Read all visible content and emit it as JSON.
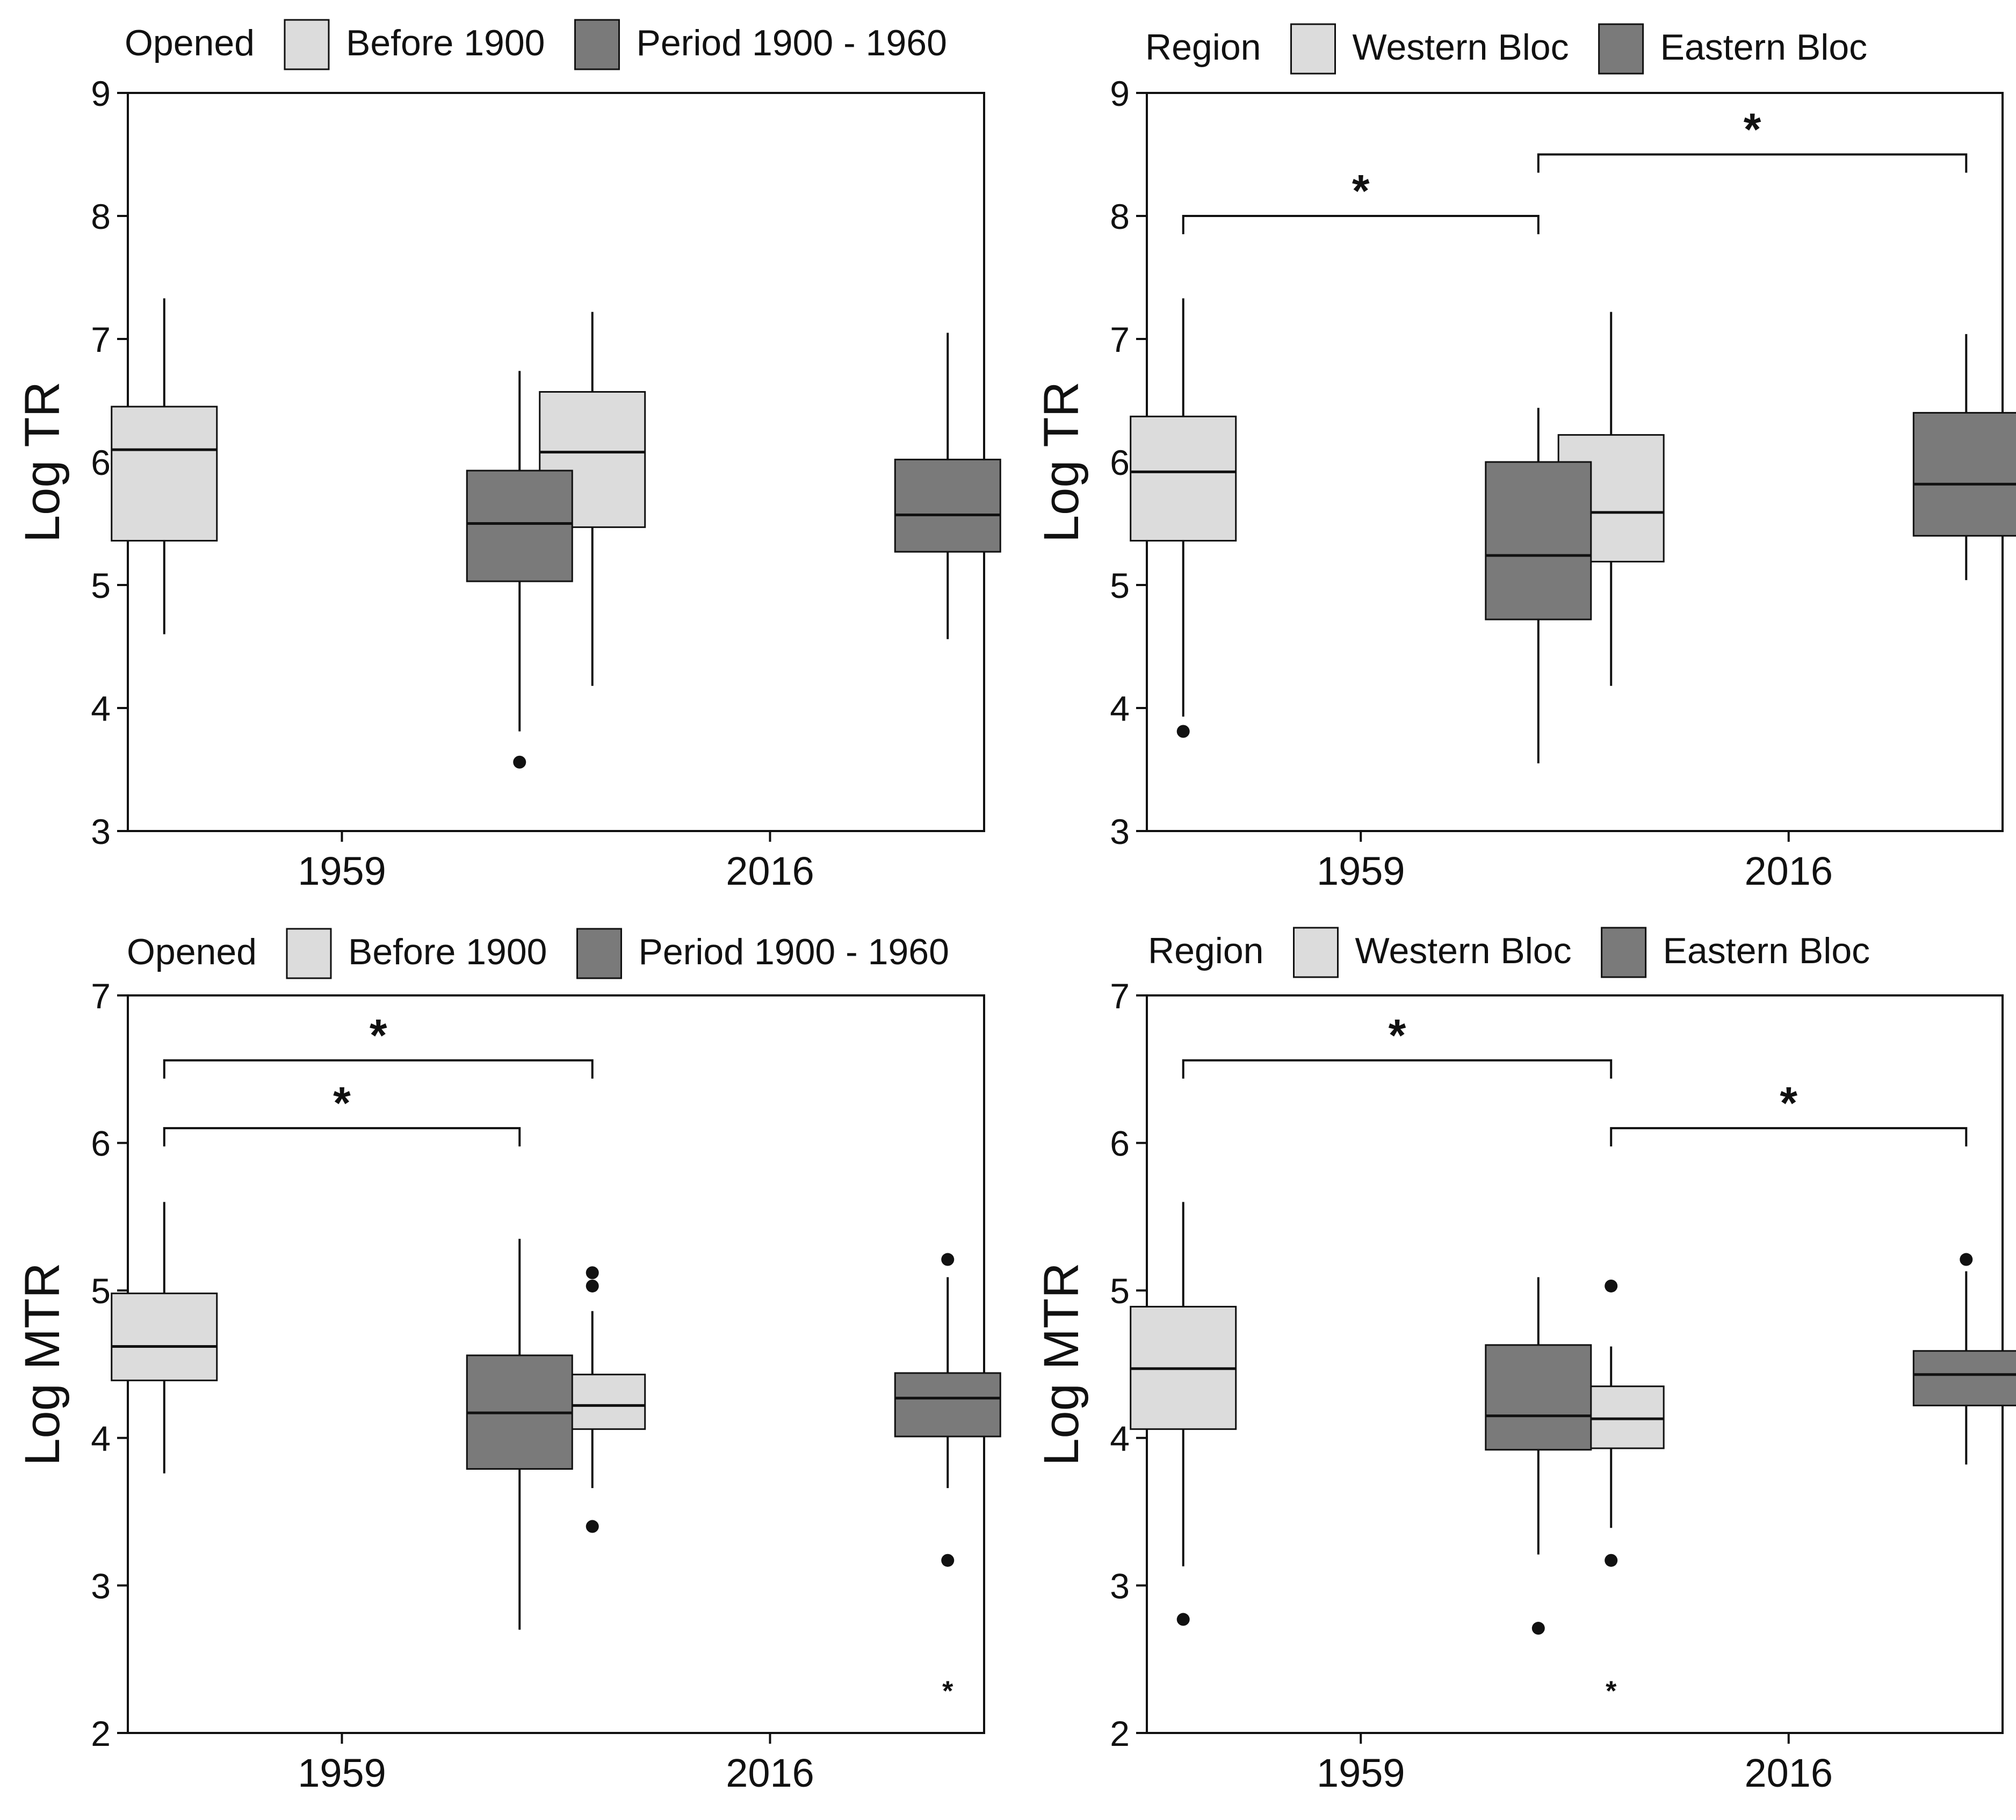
{
  "colors": {
    "before_1900": "#dcdcdc",
    "period_1900_1960": "#7a7a7a",
    "western_bloc": "#dcdcdc",
    "eastern_bloc": "#7a7a7a",
    "ink": "#111111"
  },
  "chart_data": [
    {
      "type": "box",
      "ylabel": "Log TR",
      "ylim": [
        3,
        9
      ],
      "yticks": [
        "3",
        "4",
        "5",
        "6",
        "7",
        "8",
        "9"
      ],
      "categories": [
        "1959",
        "2016"
      ],
      "legend": {
        "title": "Opened",
        "entries": [
          {
            "label": "Before 1900",
            "color": "#dcdcdc"
          },
          {
            "label": "Period 1900 - 1960",
            "color": "#7a7a7a"
          }
        ]
      },
      "series": [
        {
          "name": "Before 1900",
          "color": "#dcdcdc",
          "boxes": [
            {
              "category": "1959",
              "whisker_low": 4.6,
              "q1": 5.36,
              "median": 6.1,
              "q3": 6.45,
              "whisker_high": 7.33,
              "outliers": [],
              "extremes": []
            },
            {
              "category": "2016",
              "whisker_low": 4.18,
              "q1": 5.47,
              "median": 6.08,
              "q3": 6.57,
              "whisker_high": 7.22,
              "outliers": [],
              "extremes": []
            }
          ]
        },
        {
          "name": "Period 1900 - 1960",
          "color": "#7a7a7a",
          "boxes": [
            {
              "category": "1959",
              "whisker_low": 3.81,
              "q1": 5.03,
              "median": 5.5,
              "q3": 5.93,
              "whisker_high": 6.74,
              "outliers": [
                3.56
              ],
              "extremes": []
            },
            {
              "category": "2016",
              "whisker_low": 4.56,
              "q1": 5.27,
              "median": 5.57,
              "q3": 6.02,
              "whisker_high": 7.05,
              "outliers": [],
              "extremes": []
            }
          ]
        }
      ],
      "significance": []
    },
    {
      "type": "box",
      "ylabel": "Log TR",
      "ylim": [
        3,
        9
      ],
      "yticks": [
        "3",
        "4",
        "5",
        "6",
        "7",
        "8",
        "9"
      ],
      "categories": [
        "1959",
        "2016"
      ],
      "legend": {
        "title": "Region",
        "entries": [
          {
            "label": "Western Bloc",
            "color": "#dcdcdc"
          },
          {
            "label": "Eastern Bloc",
            "color": "#7a7a7a"
          }
        ]
      },
      "series": [
        {
          "name": "Western Bloc",
          "color": "#dcdcdc",
          "boxes": [
            {
              "category": "1959",
              "whisker_low": 3.93,
              "q1": 5.36,
              "median": 5.92,
              "q3": 6.37,
              "whisker_high": 7.33,
              "outliers": [
                3.81
              ],
              "extremes": []
            },
            {
              "category": "2016",
              "whisker_low": 4.18,
              "q1": 5.19,
              "median": 5.59,
              "q3": 6.22,
              "whisker_high": 7.22,
              "outliers": [],
              "extremes": []
            }
          ]
        },
        {
          "name": "Eastern Bloc",
          "color": "#7a7a7a",
          "boxes": [
            {
              "category": "1959",
              "whisker_low": 3.55,
              "q1": 4.72,
              "median": 5.24,
              "q3": 6.0,
              "whisker_high": 6.44,
              "outliers": [],
              "extremes": []
            },
            {
              "category": "2016",
              "whisker_low": 5.04,
              "q1": 5.4,
              "median": 5.82,
              "q3": 6.4,
              "whisker_high": 7.04,
              "outliers": [],
              "extremes": []
            }
          ]
        }
      ],
      "significance": [
        {
          "from": "1959:Western Bloc",
          "to": "1959:Eastern Bloc",
          "y": 8.0,
          "label": "*"
        },
        {
          "from": "1959:Eastern Bloc",
          "to": "2016:Eastern Bloc",
          "y": 8.5,
          "label": "*"
        }
      ]
    },
    {
      "type": "box",
      "ylabel": "Log MTR",
      "ylim": [
        2,
        7
      ],
      "yticks": [
        "2",
        "3",
        "4",
        "5",
        "6",
        "7"
      ],
      "categories": [
        "1959",
        "2016"
      ],
      "legend": {
        "title": "Opened",
        "entries": [
          {
            "label": "Before 1900",
            "color": "#dcdcdc"
          },
          {
            "label": "Period 1900 - 1960",
            "color": "#7a7a7a"
          }
        ]
      },
      "series": [
        {
          "name": "Before 1900",
          "color": "#dcdcdc",
          "boxes": [
            {
              "category": "1959",
              "whisker_low": 3.76,
              "q1": 4.39,
              "median": 4.62,
              "q3": 4.98,
              "whisker_high": 5.6,
              "outliers": [],
              "extremes": []
            },
            {
              "category": "2016",
              "whisker_low": 3.66,
              "q1": 4.06,
              "median": 4.22,
              "q3": 4.43,
              "whisker_high": 4.86,
              "outliers": [
                5.12,
                5.03,
                3.4
              ],
              "extremes": []
            }
          ]
        },
        {
          "name": "Period 1900 - 1960",
          "color": "#7a7a7a",
          "boxes": [
            {
              "category": "1959",
              "whisker_low": 2.7,
              "q1": 3.79,
              "median": 4.17,
              "q3": 4.56,
              "whisker_high": 5.35,
              "outliers": [],
              "extremes": []
            },
            {
              "category": "2016",
              "whisker_low": 3.66,
              "q1": 4.01,
              "median": 4.27,
              "q3": 4.44,
              "whisker_high": 5.09,
              "outliers": [
                5.21,
                3.17
              ],
              "extremes": [
                2.3
              ]
            }
          ]
        }
      ],
      "significance": [
        {
          "from": "1959:Before 1900",
          "to": "1959:Period 1900 - 1960",
          "y": 6.1,
          "label": "*"
        },
        {
          "from": "1959:Before 1900",
          "to": "2016:Before 1900",
          "y": 6.56,
          "label": "*"
        }
      ]
    },
    {
      "type": "box",
      "ylabel": "Log MTR",
      "ylim": [
        2,
        7
      ],
      "yticks": [
        "2",
        "3",
        "4",
        "5",
        "6",
        "7"
      ],
      "categories": [
        "1959",
        "2016"
      ],
      "legend": {
        "title": "Region",
        "entries": [
          {
            "label": "Western Bloc",
            "color": "#dcdcdc"
          },
          {
            "label": "Eastern Bloc",
            "color": "#7a7a7a"
          }
        ]
      },
      "series": [
        {
          "name": "Western Bloc",
          "color": "#dcdcdc",
          "boxes": [
            {
              "category": "1959",
              "whisker_low": 3.13,
              "q1": 4.06,
              "median": 4.47,
              "q3": 4.89,
              "whisker_high": 5.6,
              "outliers": [
                2.77
              ],
              "extremes": []
            },
            {
              "category": "2016",
              "whisker_low": 3.39,
              "q1": 3.93,
              "median": 4.13,
              "q3": 4.35,
              "whisker_high": 4.62,
              "outliers": [
                5.03,
                3.17
              ],
              "extremes": [
                2.3
              ]
            }
          ]
        },
        {
          "name": "Eastern Bloc",
          "color": "#7a7a7a",
          "boxes": [
            {
              "category": "1959",
              "whisker_low": 3.21,
              "q1": 3.92,
              "median": 4.15,
              "q3": 4.63,
              "whisker_high": 5.09,
              "outliers": [
                2.71
              ],
              "extremes": []
            },
            {
              "category": "2016",
              "whisker_low": 3.82,
              "q1": 4.22,
              "median": 4.43,
              "q3": 4.59,
              "whisker_high": 5.13,
              "outliers": [
                5.21
              ],
              "extremes": []
            }
          ]
        }
      ],
      "significance": [
        {
          "from": "1959:Western Bloc",
          "to": "2016:Western Bloc",
          "y": 6.56,
          "label": "*"
        },
        {
          "from": "2016:Western Bloc",
          "to": "2016:Eastern Bloc",
          "y": 6.1,
          "label": "*"
        }
      ]
    }
  ]
}
